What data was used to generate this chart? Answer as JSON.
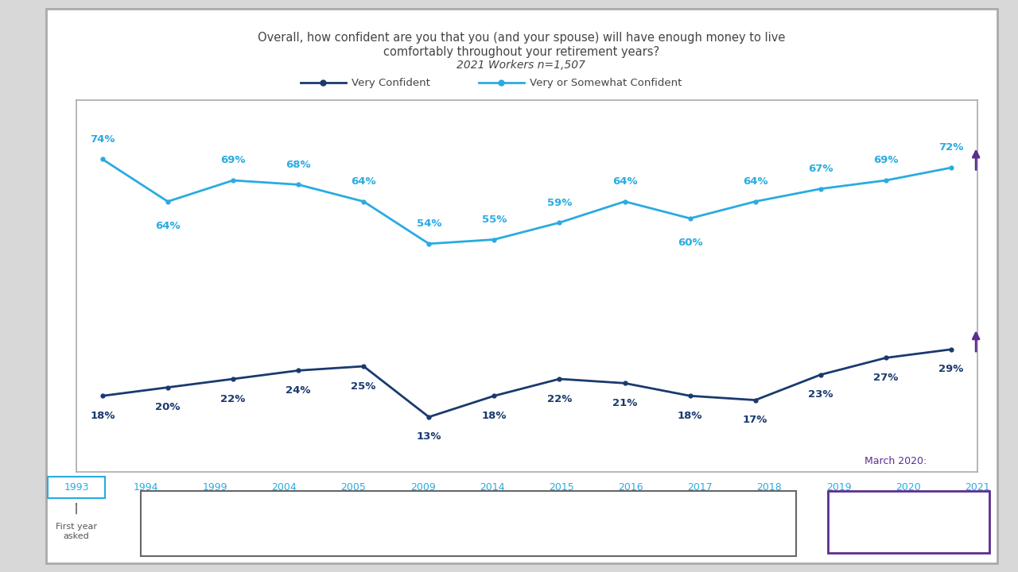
{
  "title_line1": "Overall, how confident are you that you (and your spouse) will have enough money to live",
  "title_line2": "comfortably throughout your retirement years?",
  "title_line3": "2021 Workers n=1,507",
  "years": [
    1993,
    1994,
    1999,
    2004,
    2005,
    2009,
    2014,
    2015,
    2016,
    2017,
    2018,
    2019,
    2020,
    2021
  ],
  "very_confident": [
    18,
    20,
    22,
    24,
    25,
    13,
    18,
    22,
    21,
    18,
    17,
    23,
    27,
    29
  ],
  "very_somewhat_confident": [
    74,
    64,
    69,
    68,
    64,
    54,
    55,
    59,
    64,
    60,
    64,
    67,
    69,
    72
  ],
  "very_confident_color": "#1a3a6e",
  "very_somewhat_color": "#29abe2",
  "outer_bg": "#d8d8d8",
  "chart_bg": "#ffffff",
  "title_color": "#444444",
  "year_label_color": "#29abe2",
  "arrow_up_prev_color": "#00AA00",
  "arrow_down_prev_color": "#CC0000",
  "arrow_up_march_color": "#5b2d8e",
  "arrow_down_march_color": "#b07fc0",
  "march2020_box_color": "#5b2d8e",
  "legend_box_color": "#666666",
  "first_year_box_color": "#29abe2",
  "chart_border_color": "#aaaaaa"
}
